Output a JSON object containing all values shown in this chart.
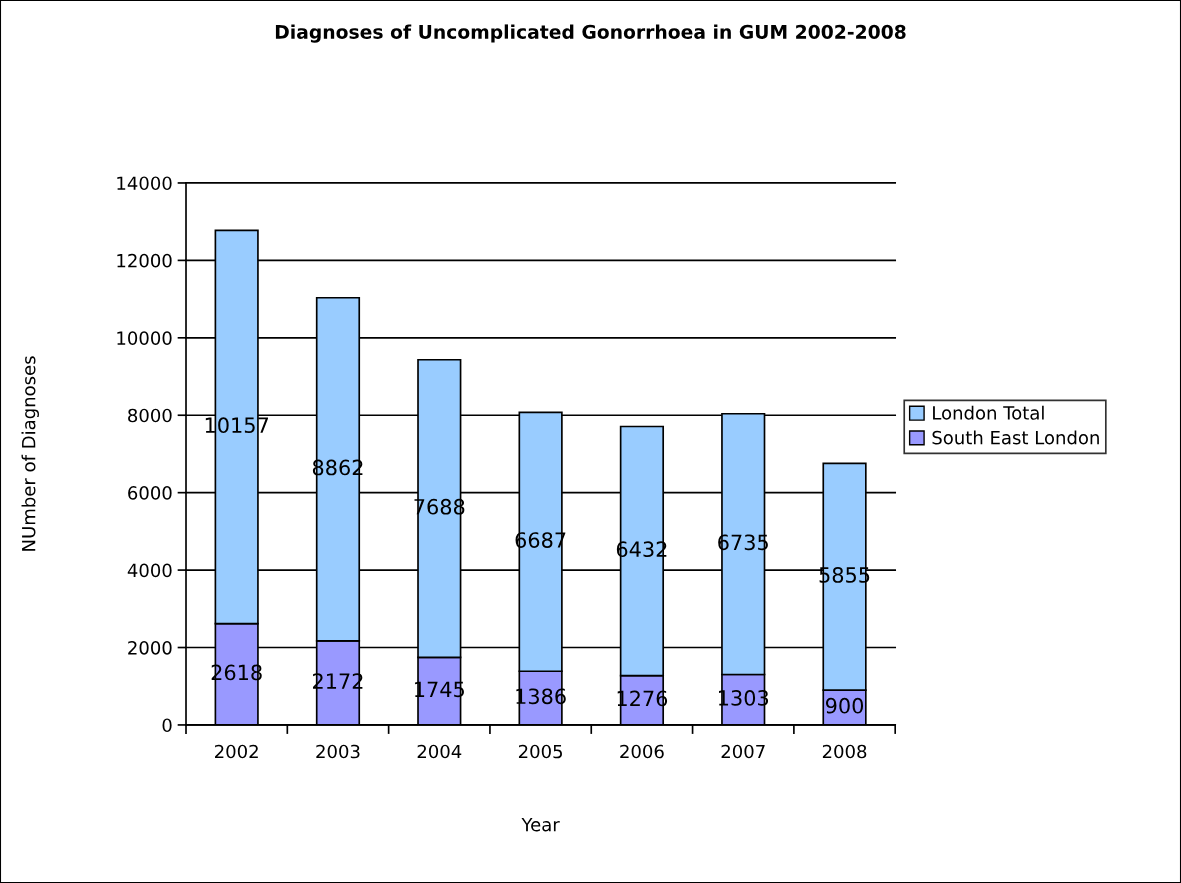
{
  "chart_data": {
    "type": "bar",
    "title": "Diagnoses of Uncomplicated Gonorrhoea in GUM 2002-2008",
    "xlabel": "Year",
    "ylabel": "NUmber of Diagnoses",
    "categories": [
      "2002",
      "2003",
      "2004",
      "2005",
      "2006",
      "2007",
      "2008"
    ],
    "series": [
      {
        "name": "South East London",
        "color": "#9999ff",
        "values": [
          2618,
          2172,
          1745,
          1386,
          1276,
          1303,
          900
        ]
      },
      {
        "name": "London Total",
        "color": "#99ccff",
        "values": [
          10157,
          8862,
          7688,
          6687,
          6432,
          6735,
          5855
        ]
      }
    ],
    "stacked": true,
    "data_labels": true,
    "ylim": [
      0,
      14000
    ],
    "yticks": [
      0,
      2000,
      4000,
      6000,
      8000,
      10000,
      12000,
      14000
    ],
    "grid": "y",
    "legend": "right"
  }
}
